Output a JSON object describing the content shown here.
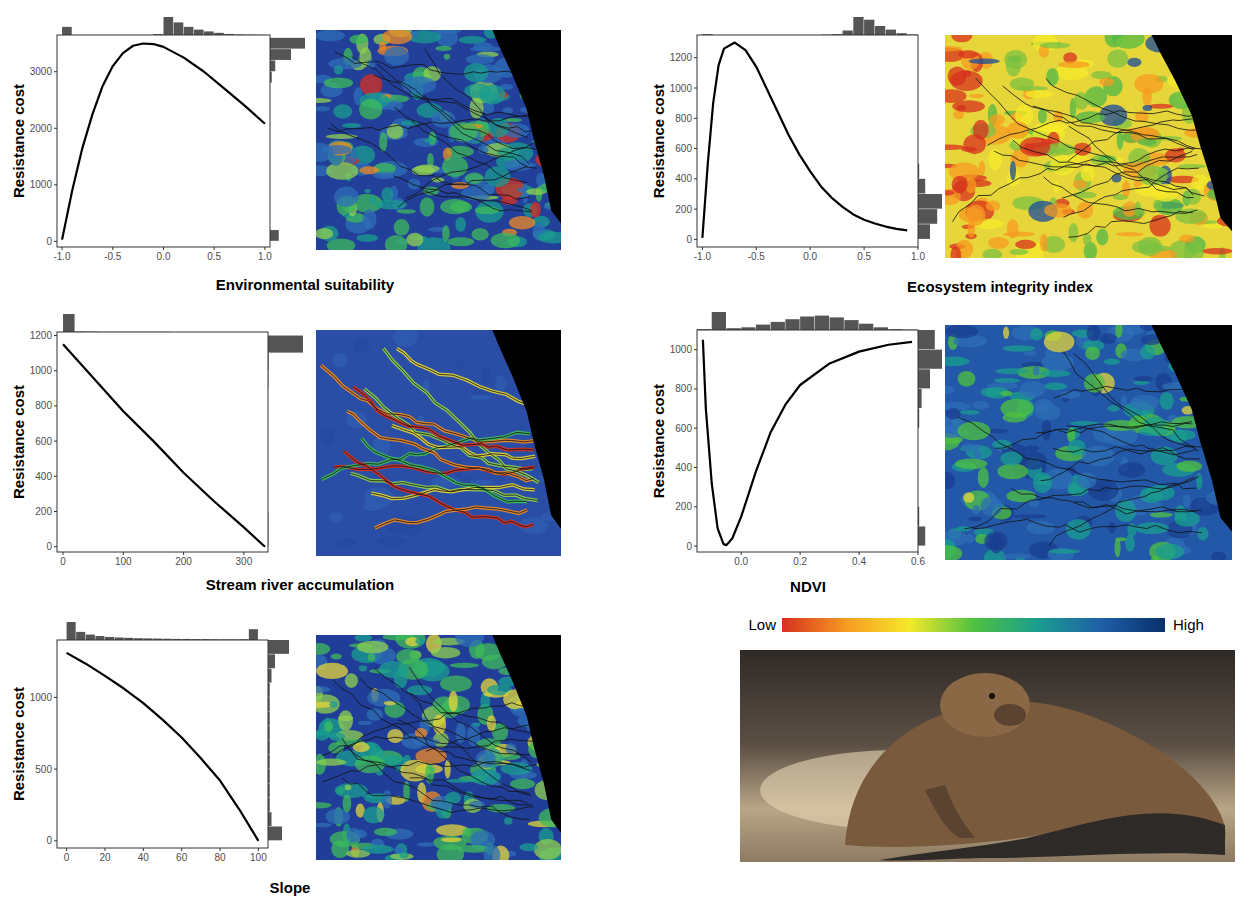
{
  "chart_data": [
    {
      "type": "line",
      "xlabel": "Environmental suitability",
      "ylabel": "Resistance cost",
      "x": [
        -1,
        -0.9,
        -0.8,
        -0.7,
        -0.6,
        -0.5,
        -0.4,
        -0.3,
        -0.2,
        -0.1,
        0,
        0.2,
        0.4,
        0.6,
        0.8,
        1.0
      ],
      "values": [
        30,
        900,
        1650,
        2250,
        2750,
        3100,
        3330,
        3460,
        3500,
        3490,
        3440,
        3250,
        3000,
        2700,
        2400,
        2080
      ],
      "color": "#000000",
      "xlim": [
        -1.05,
        1.05
      ],
      "ylim": [
        -100,
        3650
      ],
      "xticks": [
        {
          "value": -1,
          "label": "-1.0"
        },
        -0.5,
        {
          "value": 0,
          "label": "0.0"
        },
        0.5,
        {
          "value": 1,
          "label": "1.0"
        }
      ],
      "yticks": [
        0,
        1000,
        2000,
        3000
      ],
      "x_hist": {
        "bins": [
          -1.0,
          -0.9,
          -0.8,
          -0.7,
          -0.6,
          -0.5,
          -0.4,
          -0.3,
          -0.2,
          -0.1,
          0,
          0.1,
          0.2,
          0.3,
          0.4,
          0.5,
          0.6,
          0.7,
          0.8,
          0.9,
          1.0
        ],
        "counts": [
          0.45,
          0,
          0,
          0,
          0,
          0,
          0,
          0,
          0,
          0.05,
          1.0,
          0.7,
          0.45,
          0.3,
          0.2,
          0.12,
          0.06,
          0.03,
          0.02,
          0.01
        ]
      },
      "y_hist": {
        "bins": [
          0,
          200,
          400,
          600,
          800,
          1000,
          1200,
          1400,
          1600,
          1800,
          2000,
          2200,
          2400,
          2600,
          2800,
          3000,
          3200,
          3400,
          3600
        ],
        "counts": [
          0.25,
          0,
          0,
          0,
          0,
          0,
          0,
          0,
          0,
          0,
          0,
          0,
          0,
          0,
          0.05,
          0.15,
          0.6,
          1.0
        ]
      }
    },
    {
      "type": "line",
      "xlabel": "Ecosystem integrity index",
      "ylabel": "Resistance cost",
      "x": [
        -1,
        -0.95,
        -0.9,
        -0.85,
        -0.8,
        -0.7,
        -0.6,
        -0.5,
        -0.4,
        -0.3,
        -0.2,
        -0.1,
        0,
        0.1,
        0.2,
        0.3,
        0.4,
        0.5,
        0.6,
        0.7,
        0.8,
        0.9
      ],
      "values": [
        10,
        500,
        900,
        1150,
        1260,
        1300,
        1250,
        1140,
        990,
        840,
        690,
        560,
        450,
        350,
        275,
        215,
        165,
        130,
        105,
        85,
        70,
        60
      ],
      "color": "#000000",
      "xlim": [
        -1.05,
        1.0
      ],
      "ylim": [
        -50,
        1350
      ],
      "xticks": [
        {
          "value": -1,
          "label": "-1.0"
        },
        -0.5,
        {
          "value": 0,
          "label": "0.0"
        },
        0.5,
        {
          "value": 1,
          "label": "1.0"
        }
      ],
      "yticks": [
        0,
        200,
        400,
        600,
        800,
        1000,
        1200
      ],
      "x_hist": {
        "bins": [
          -1.0,
          -0.9,
          -0.8,
          -0.7,
          -0.6,
          -0.5,
          -0.4,
          -0.3,
          -0.2,
          -0.1,
          0,
          0.1,
          0.2,
          0.3,
          0.4,
          0.5,
          0.6,
          0.7,
          0.8,
          0.9,
          1.0
        ],
        "counts": [
          0.05,
          0,
          0,
          0,
          0,
          0,
          0,
          0,
          0,
          0,
          0,
          0.02,
          0.05,
          0.25,
          1.0,
          0.85,
          0.5,
          0.3,
          0.1,
          0.03
        ]
      },
      "y_hist": {
        "bins": [
          0,
          100,
          200,
          300,
          400,
          500,
          600,
          700,
          800,
          900,
          1000,
          1100,
          1200,
          1300
        ],
        "counts": [
          0.5,
          0.8,
          1.0,
          0.3,
          0.05,
          0,
          0,
          0,
          0,
          0,
          0,
          0,
          0
        ]
      }
    },
    {
      "type": "line",
      "xlabel": "Stream river accumulation",
      "ylabel": "Resistance cost",
      "x": [
        0,
        50,
        100,
        150,
        200,
        250,
        300,
        335
      ],
      "values": [
        1150,
        960,
        770,
        600,
        420,
        260,
        110,
        0
      ],
      "color": "#000000",
      "xlim": [
        -10,
        340
      ],
      "ylim": [
        -30,
        1220
      ],
      "xticks": [
        0,
        100,
        200,
        300
      ],
      "yticks": [
        0,
        200,
        400,
        600,
        800,
        1000,
        1200
      ],
      "x_hist": {
        "bins": [
          0,
          20,
          40,
          60,
          80,
          100,
          120,
          140,
          160,
          180,
          200,
          220,
          240,
          260,
          280,
          300,
          320,
          340
        ],
        "counts": [
          1.0,
          0.03,
          0.02,
          0.01,
          0.01,
          0.01,
          0.01,
          0.01,
          0.01,
          0,
          0,
          0,
          0,
          0,
          0,
          0,
          0
        ]
      },
      "y_hist": {
        "bins": [
          0,
          100,
          200,
          300,
          400,
          500,
          600,
          700,
          800,
          900,
          1000,
          1100,
          1200
        ],
        "counts": [
          0.01,
          0.01,
          0,
          0,
          0,
          0,
          0,
          0,
          0,
          0.01,
          0.02,
          1.0
        ]
      }
    },
    {
      "type": "line",
      "xlabel": "NDVI",
      "ylabel": "Resistance cost",
      "x": [
        -0.13,
        -0.12,
        -0.1,
        -0.08,
        -0.06,
        -0.05,
        -0.03,
        0,
        0.05,
        0.1,
        0.15,
        0.2,
        0.3,
        0.4,
        0.5,
        0.58
      ],
      "values": [
        1050,
        700,
        320,
        90,
        10,
        5,
        40,
        150,
        380,
        580,
        720,
        820,
        930,
        990,
        1025,
        1040
      ],
      "color": "#000000",
      "xlim": [
        -0.15,
        0.6
      ],
      "ylim": [
        -30,
        1100
      ],
      "xticks": [
        {
          "value": 0,
          "label": "0.0"
        },
        0.2,
        0.4,
        0.6
      ],
      "yticks": [
        0,
        200,
        400,
        600,
        800,
        1000
      ],
      "x_hist": {
        "bins": [
          -0.15,
          -0.1,
          -0.05,
          0,
          0.05,
          0.1,
          0.15,
          0.2,
          0.25,
          0.3,
          0.35,
          0.4,
          0.45,
          0.5,
          0.55,
          0.6
        ],
        "counts": [
          0.05,
          1.0,
          0.1,
          0.15,
          0.3,
          0.45,
          0.6,
          0.75,
          0.8,
          0.7,
          0.55,
          0.35,
          0.15,
          0.05,
          0.02
        ]
      },
      "y_hist": {
        "bins": [
          0,
          100,
          200,
          300,
          400,
          500,
          600,
          700,
          800,
          900,
          1000,
          1100
        ],
        "counts": [
          0.3,
          0.05,
          0,
          0,
          0,
          0,
          0.05,
          0.15,
          0.5,
          1.0,
          0.7
        ]
      }
    },
    {
      "type": "line",
      "xlabel": "Slope",
      "ylabel": "Resistance cost",
      "x": [
        0,
        10,
        20,
        30,
        40,
        50,
        60,
        70,
        80,
        90,
        100
      ],
      "values": [
        1310,
        1235,
        1150,
        1060,
        960,
        845,
        720,
        575,
        420,
        220,
        0
      ],
      "color": "#000000",
      "xlim": [
        -5,
        105
      ],
      "ylim": [
        -50,
        1400
      ],
      "xticks": [
        0,
        20,
        40,
        60,
        80,
        100
      ],
      "yticks": [
        0,
        500,
        1000
      ],
      "x_hist": {
        "bins": [
          0,
          5,
          10,
          15,
          20,
          25,
          30,
          35,
          40,
          45,
          50,
          55,
          60,
          65,
          70,
          75,
          80,
          85,
          90,
          95,
          100
        ],
        "counts": [
          1.0,
          0.45,
          0.3,
          0.22,
          0.17,
          0.14,
          0.12,
          0.1,
          0.09,
          0.08,
          0.07,
          0.06,
          0.06,
          0.05,
          0.05,
          0.04,
          0.04,
          0.04,
          0.04,
          0.6
        ]
      },
      "y_hist": {
        "bins": [
          0,
          100,
          200,
          300,
          400,
          500,
          600,
          700,
          800,
          900,
          1000,
          1100,
          1200,
          1300,
          1400
        ],
        "counts": [
          0.4,
          0.1,
          0.05,
          0.05,
          0.05,
          0.05,
          0.05,
          0.05,
          0.05,
          0.05,
          0.05,
          0.1,
          0.2,
          0.6
        ]
      }
    }
  ],
  "colorbar": {
    "low": "Low",
    "high": "High"
  }
}
